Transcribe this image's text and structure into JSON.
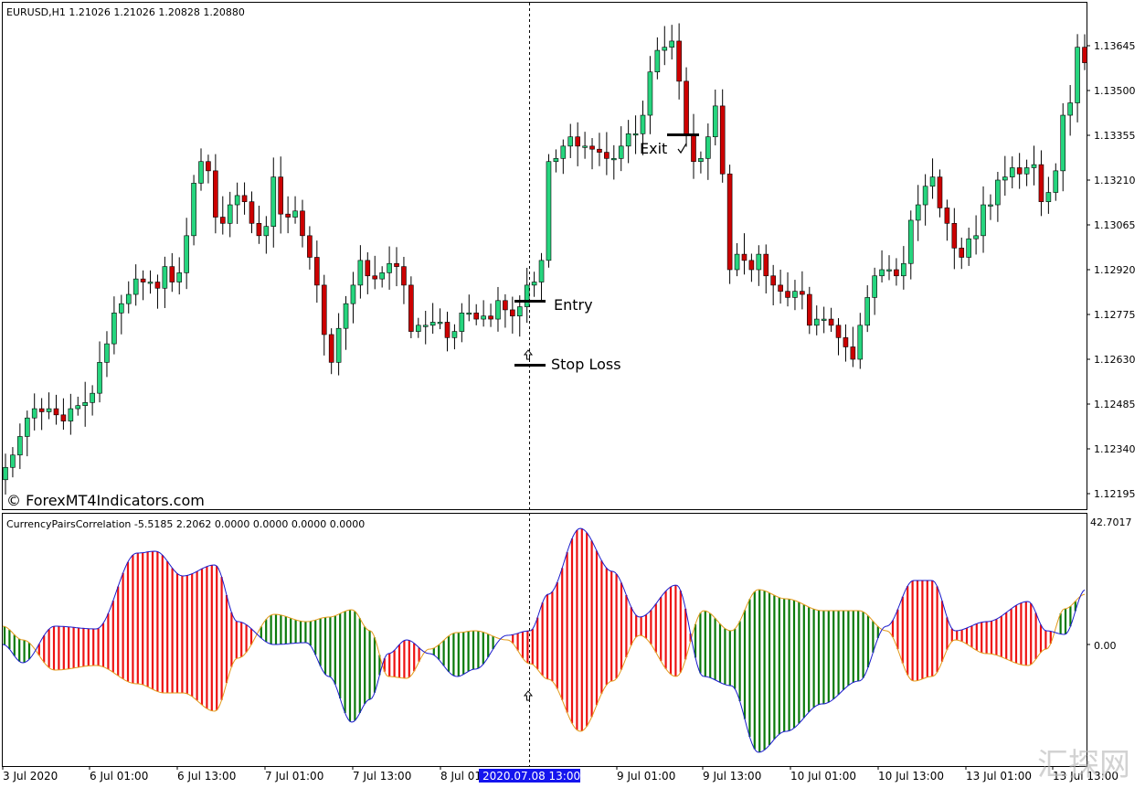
{
  "header": {
    "symbol_info": "EURUSD,H1  1.21026 1.21026 1.20828 1.20880"
  },
  "indicator": {
    "title": "CurrencyPairsCorrelation -5.5185 2.2062 0.0000 0.0000 0.0000 0.0000",
    "top_value": "42.7017",
    "zero_label": "0.00"
  },
  "watermark": "© ForexMT4Indicators.com",
  "annotations": {
    "entry": "Entry",
    "stop_loss": "Stop Loss",
    "exit": "Exit"
  },
  "crosshair_date": "2020.07.08 13:00",
  "site_logo": "汇探网",
  "colors": {
    "bull": "#26d57e",
    "bear": "#cc0000",
    "hist_green": "#0a7a0a",
    "hist_red": "#ee1111",
    "line_blue": "#1a1acc",
    "line_orange": "#e39a1a",
    "crosshair_bg": "#1515ee"
  },
  "chart_data": {
    "type": "candlestick",
    "price_axis_labels": [
      "1.13645",
      "1.13500",
      "1.13355",
      "1.13210",
      "1.13065",
      "1.12920",
      "1.12775",
      "1.12630",
      "1.12485",
      "1.12340",
      "1.12195"
    ],
    "time_axis_labels": [
      "3 Jul 2020",
      "6 Jul 01:00",
      "6 Jul 13:00",
      "7 Jul 01:00",
      "7 Jul 13:00",
      "8 Jul 01:00",
      "9 Jul 01:00",
      "9 Jul 13:00",
      "10 Jul 01:00",
      "10 Jul 13:00",
      "13 Jul 01:00",
      "13 Jul 13:00"
    ],
    "closes": [
      1.1228,
      1.1232,
      1.1238,
      1.1244,
      1.1247,
      1.1246,
      1.1247,
      1.1245,
      1.1243,
      1.1247,
      1.1248,
      1.1249,
      1.1252,
      1.1262,
      1.1268,
      1.1278,
      1.1281,
      1.1284,
      1.1289,
      1.1288,
      1.1288,
      1.1286,
      1.1293,
      1.1288,
      1.1291,
      1.1303,
      1.132,
      1.1327,
      1.1324,
      1.1309,
      1.1307,
      1.1313,
      1.1316,
      1.1314,
      1.1307,
      1.1303,
      1.1306,
      1.1322,
      1.131,
      1.1309,
      1.1311,
      1.1303,
      1.1296,
      1.1287,
      1.1271,
      1.1262,
      1.1273,
      1.1281,
      1.1287,
      1.1295,
      1.129,
      1.1289,
      1.1291,
      1.1294,
      1.1293,
      1.1287,
      1.1272,
      1.1274,
      1.1274,
      1.1275,
      1.1275,
      1.127,
      1.1272,
      1.1278,
      1.1278,
      1.1276,
      1.1277,
      1.1276,
      1.1282,
      1.1279,
      1.1277,
      1.128,
      1.1287,
      1.1288,
      1.1295,
      1.1327,
      1.1328,
      1.1332,
      1.1335,
      1.1332,
      1.1332,
      1.1331,
      1.133,
      1.1328,
      1.1328,
      1.1332,
      1.1336,
      1.1336,
      1.1342,
      1.1356,
      1.1363,
      1.1364,
      1.1366,
      1.1353,
      1.1336,
      1.1327,
      1.1328,
      1.1335,
      1.1345,
      1.1323,
      1.1292,
      1.1297,
      1.1295,
      1.1292,
      1.1297,
      1.129,
      1.1287,
      1.1285,
      1.1283,
      1.1285,
      1.1284,
      1.1274,
      1.1276,
      1.1276,
      1.1274,
      1.127,
      1.1267,
      1.1263,
      1.1274,
      1.1283,
      1.129,
      1.1292,
      1.1292,
      1.129,
      1.1294,
      1.1308,
      1.1313,
      1.1319,
      1.1322,
      1.1312,
      1.1307,
      1.1299,
      1.1296,
      1.1302,
      1.1303,
      1.1313,
      1.1313,
      1.1321,
      1.1322,
      1.1325,
      1.1323,
      1.1325,
      1.1326,
      1.1314,
      1.1317,
      1.1324,
      1.1342,
      1.1346,
      1.1364,
      1.1359
    ]
  }
}
